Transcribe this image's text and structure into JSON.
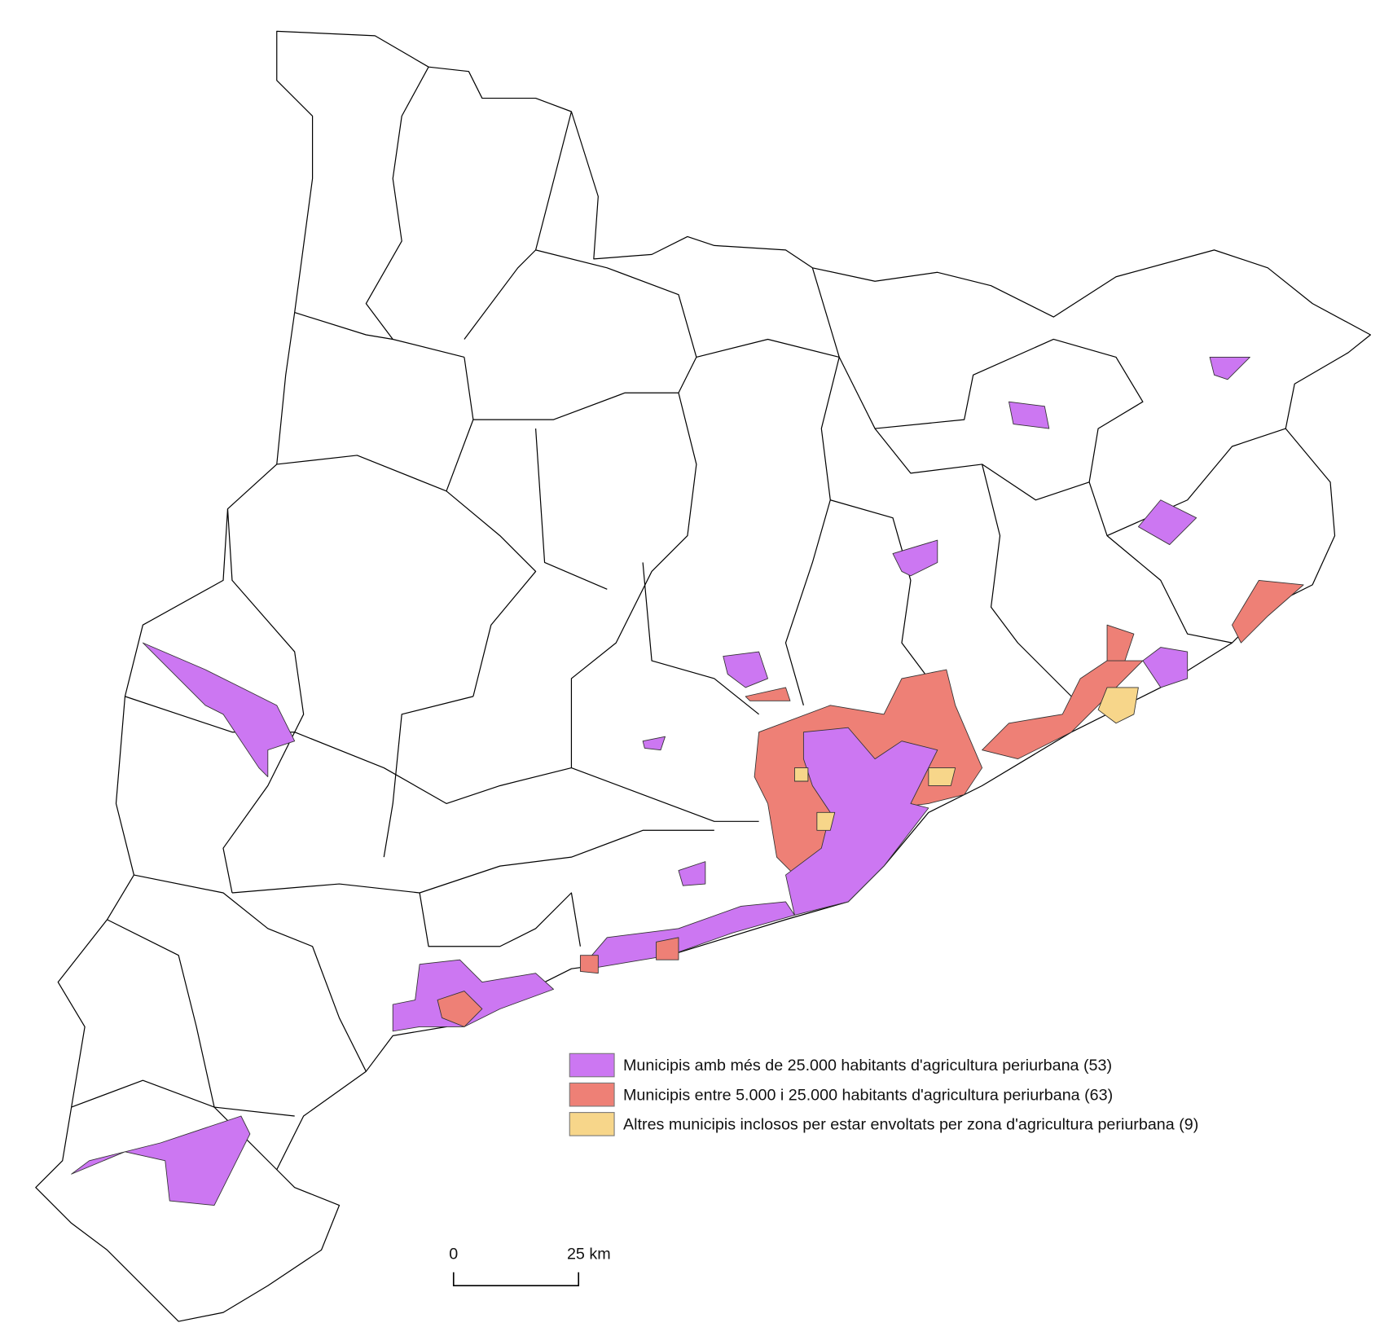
{
  "legend": [
    {
      "label": "Municipis amb més de 25.000 habitants d'agricultura periurbana (53)",
      "color": "#cc77f2"
    },
    {
      "label": "Municipis entre 5.000 i 25.000 habitants d'agricultura periurbana (63)",
      "color": "#ee8076"
    },
    {
      "label": "Altres municipis inclosos per estar envoltats per zona d'agricultura periurbana (9)",
      "color": "#f7d68a"
    }
  ],
  "scale_bar": {
    "start_label": "0",
    "end_label": "25 km"
  }
}
